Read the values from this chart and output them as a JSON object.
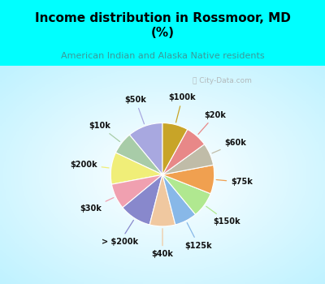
{
  "title": "Income distribution in Rossmoor, MD\n(%)",
  "subtitle": "American Indian and Alaska Native residents",
  "title_color": "#000000",
  "subtitle_color": "#3a9a9a",
  "watermark": "ⓘ City-Data.com",
  "background_cyan": "#00ffff",
  "labels": [
    "$50k",
    "$10k",
    "$200k",
    "$30k",
    "> $200k",
    "$40k",
    "$125k",
    "$150k",
    "$75k",
    "$60k",
    "$20k",
    "$100k"
  ],
  "values": [
    11,
    7,
    10,
    8,
    10,
    8,
    7,
    8,
    9,
    7,
    7,
    8
  ],
  "colors": [
    "#a8a8e0",
    "#a8cca8",
    "#f0ee78",
    "#f0a0b0",
    "#8888cc",
    "#f0c8a0",
    "#88b8e8",
    "#b0e890",
    "#f0a050",
    "#c0bca8",
    "#e88888",
    "#c8a428"
  ],
  "label_fontsize": 7,
  "startangle": 90,
  "title_fontsize": 11,
  "subtitle_fontsize": 8
}
